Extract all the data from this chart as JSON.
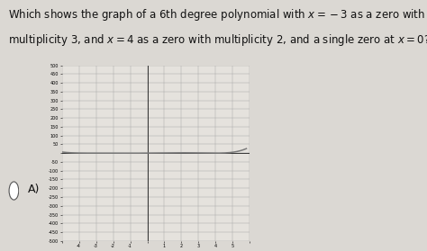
{
  "title_line1": "Which shows the graph of a 6th degree polynomial with ",
  "title_bold1": "x",
  "title_line1b": " = −3 as a zero with",
  "title_line2": "multiplicity 3, and ",
  "title_bold2": "x",
  "title_line2b": " = 4 as a zero with multiplicity 2, and a single zero at ",
  "title_bold3": "x",
  "title_line2c": " = 0?",
  "label_A": "A)",
  "xlim": [
    -5,
    6
  ],
  "ylim": [
    -500,
    500
  ],
  "ytick_step": 50,
  "background_color": "#dbd8d3",
  "graph_bg": "#e5e2dd",
  "grid_color": "#aaaaaa",
  "curve_color": "#7a7a7a",
  "text_color": "#111111",
  "title_fontsize": 8.5,
  "label_fontsize": 9,
  "scale_factor": 0.002
}
